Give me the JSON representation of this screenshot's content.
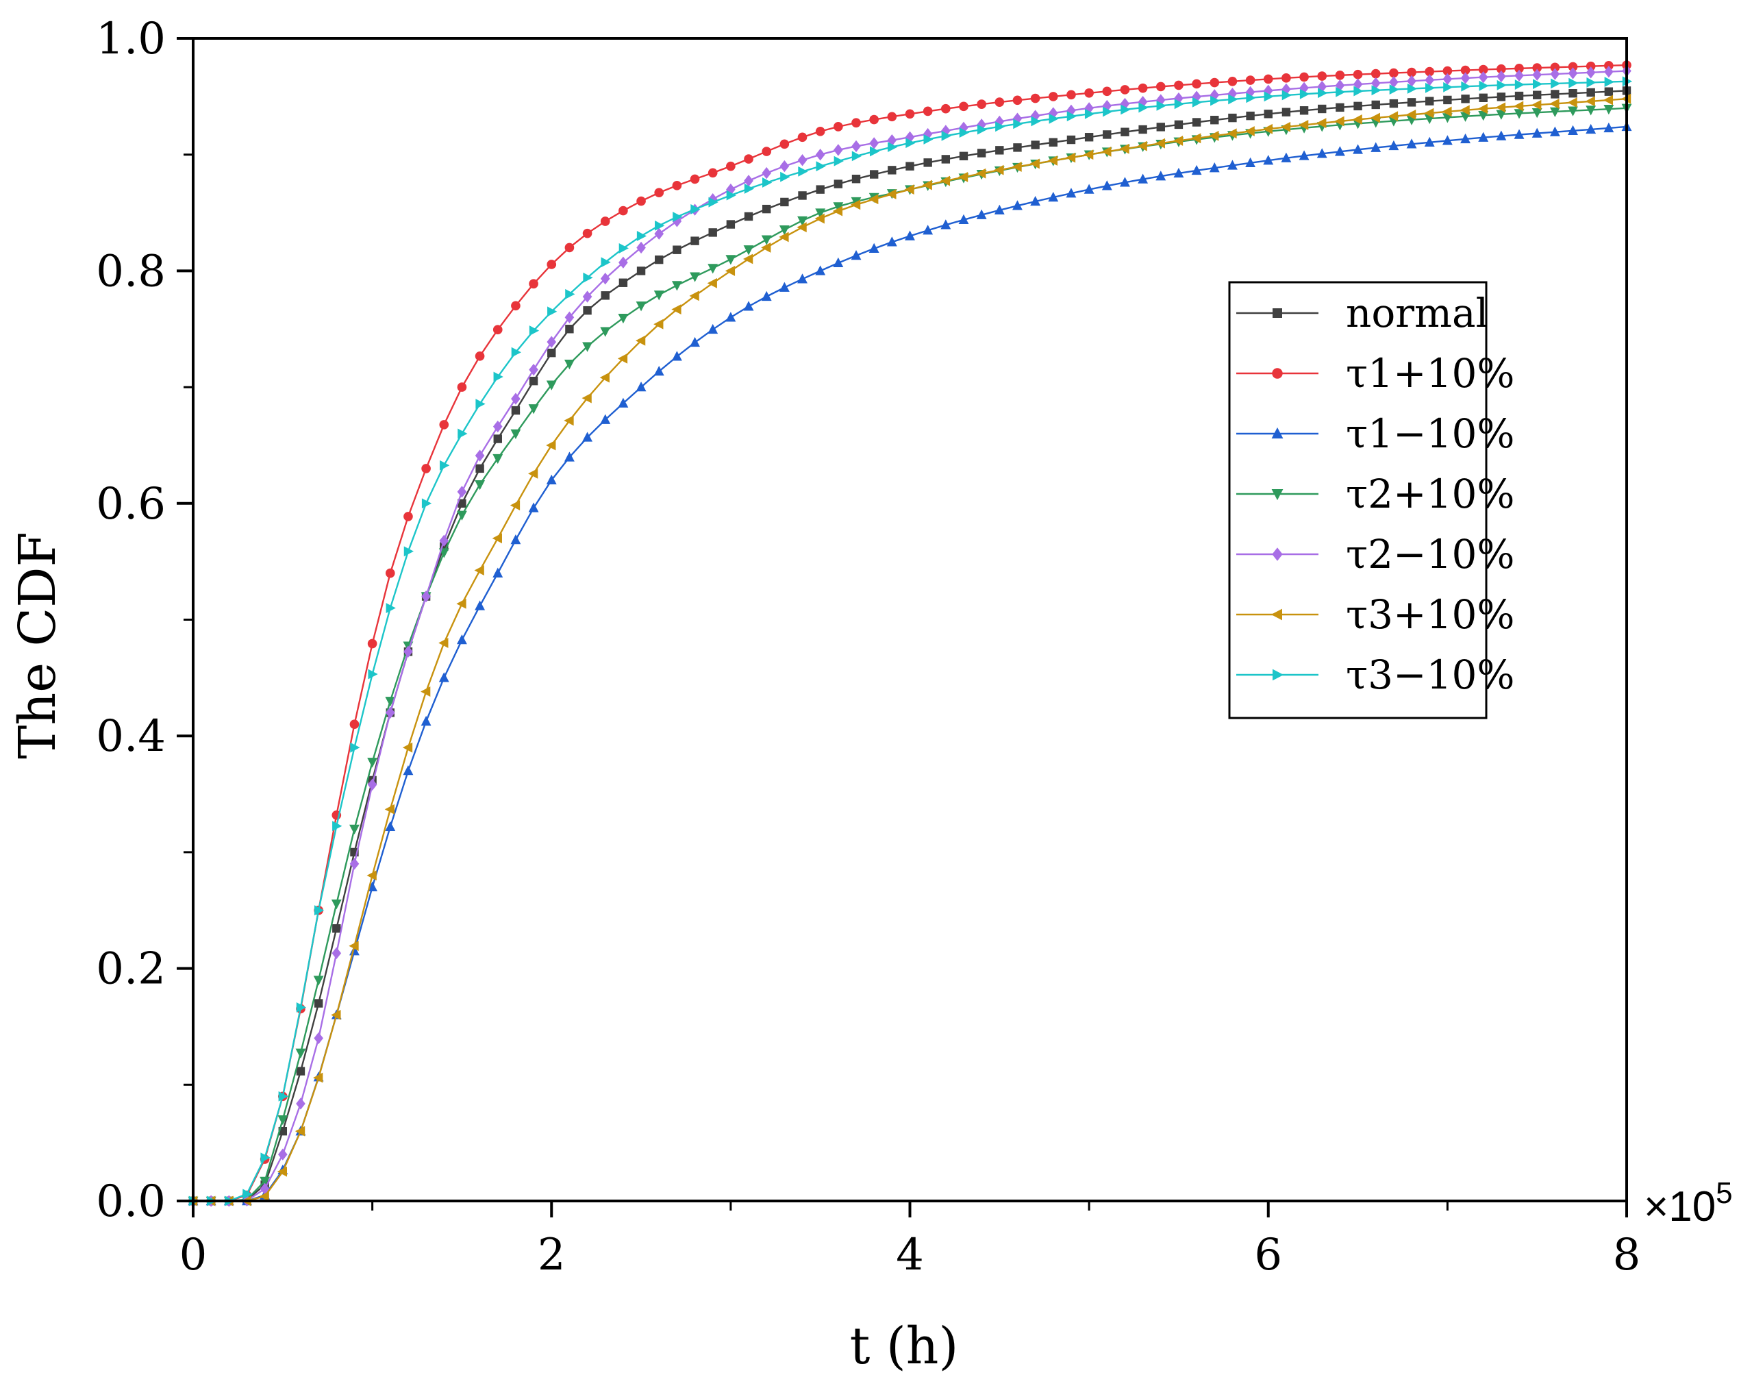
{
  "chart_data": {
    "type": "line",
    "title": "",
    "xlabel": "t (h)",
    "ylabel": "The CDF",
    "x_multiplier": "×10",
    "x_multiplier_exp": "5",
    "xlim": [
      0,
      8
    ],
    "ylim": [
      0,
      1
    ],
    "x_ticks": [
      0,
      2,
      4,
      6,
      8
    ],
    "x_tick_labels": [
      "0",
      "2",
      "4",
      "6",
      "8"
    ],
    "y_ticks": [
      0,
      0.2,
      0.4,
      0.6,
      0.8,
      1.0
    ],
    "y_tick_labels": [
      "0.0",
      "0.2",
      "0.4",
      "0.6",
      "0.8",
      "1.0"
    ],
    "grid": false,
    "legend_position": "right-middle",
    "series": [
      {
        "name": "normal",
        "color": "#404040",
        "marker": "square",
        "points": [
          [
            0,
            0
          ],
          [
            0.2,
            0
          ],
          [
            0.35,
            0.003
          ],
          [
            0.5,
            0.06
          ],
          [
            0.7,
            0.17
          ],
          [
            0.9,
            0.3
          ],
          [
            1.1,
            0.42
          ],
          [
            1.3,
            0.52
          ],
          [
            1.5,
            0.6
          ],
          [
            1.8,
            0.68
          ],
          [
            2.1,
            0.75
          ],
          [
            2.5,
            0.8
          ],
          [
            3.0,
            0.84
          ],
          [
            3.5,
            0.87
          ],
          [
            4.0,
            0.89
          ],
          [
            5.0,
            0.915
          ],
          [
            6.0,
            0.935
          ],
          [
            7.0,
            0.947
          ],
          [
            8.0,
            0.955
          ]
        ]
      },
      {
        "name": "τ1+10%",
        "color": "#e8343a",
        "marker": "circle",
        "points": [
          [
            0,
            0
          ],
          [
            0.2,
            0
          ],
          [
            0.3,
            0.005
          ],
          [
            0.5,
            0.09
          ],
          [
            0.7,
            0.25
          ],
          [
            0.9,
            0.41
          ],
          [
            1.1,
            0.54
          ],
          [
            1.3,
            0.63
          ],
          [
            1.5,
            0.7
          ],
          [
            1.8,
            0.77
          ],
          [
            2.1,
            0.82
          ],
          [
            2.5,
            0.86
          ],
          [
            3.0,
            0.89
          ],
          [
            3.5,
            0.92
          ],
          [
            4.0,
            0.935
          ],
          [
            5.0,
            0.953
          ],
          [
            6.0,
            0.965
          ],
          [
            7.0,
            0.972
          ],
          [
            8.0,
            0.977
          ]
        ]
      },
      {
        "name": "τ1−10%",
        "color": "#1f5fd1",
        "marker": "triangle-up",
        "points": [
          [
            0,
            0
          ],
          [
            0.3,
            0
          ],
          [
            0.4,
            0.005
          ],
          [
            0.6,
            0.06
          ],
          [
            0.8,
            0.16
          ],
          [
            1.0,
            0.27
          ],
          [
            1.2,
            0.37
          ],
          [
            1.4,
            0.45
          ],
          [
            1.7,
            0.54
          ],
          [
            2.0,
            0.62
          ],
          [
            2.5,
            0.7
          ],
          [
            3.0,
            0.76
          ],
          [
            3.5,
            0.8
          ],
          [
            4.0,
            0.83
          ],
          [
            5.0,
            0.87
          ],
          [
            6.0,
            0.895
          ],
          [
            7.0,
            0.912
          ],
          [
            8.0,
            0.924
          ]
        ]
      },
      {
        "name": "τ2+10%",
        "color": "#2e9a5c",
        "marker": "triangle-down",
        "points": [
          [
            0,
            0
          ],
          [
            0.2,
            0
          ],
          [
            0.35,
            0.004
          ],
          [
            0.5,
            0.07
          ],
          [
            0.7,
            0.19
          ],
          [
            0.9,
            0.32
          ],
          [
            1.1,
            0.43
          ],
          [
            1.3,
            0.52
          ],
          [
            1.5,
            0.59
          ],
          [
            1.8,
            0.66
          ],
          [
            2.1,
            0.72
          ],
          [
            2.5,
            0.77
          ],
          [
            3.0,
            0.81
          ],
          [
            3.5,
            0.85
          ],
          [
            4.0,
            0.87
          ],
          [
            5.0,
            0.9
          ],
          [
            6.0,
            0.92
          ],
          [
            7.0,
            0.932
          ],
          [
            8.0,
            0.94
          ]
        ]
      },
      {
        "name": "τ2−10%",
        "color": "#a86ee6",
        "marker": "diamond",
        "points": [
          [
            0,
            0
          ],
          [
            0.25,
            0
          ],
          [
            0.35,
            0.003
          ],
          [
            0.5,
            0.04
          ],
          [
            0.7,
            0.14
          ],
          [
            0.9,
            0.29
          ],
          [
            1.1,
            0.42
          ],
          [
            1.3,
            0.52
          ],
          [
            1.5,
            0.61
          ],
          [
            1.8,
            0.69
          ],
          [
            2.1,
            0.76
          ],
          [
            2.5,
            0.82
          ],
          [
            3.0,
            0.87
          ],
          [
            3.5,
            0.9
          ],
          [
            4.0,
            0.915
          ],
          [
            5.0,
            0.94
          ],
          [
            6.0,
            0.955
          ],
          [
            7.0,
            0.965
          ],
          [
            8.0,
            0.972
          ]
        ]
      },
      {
        "name": "τ3+10%",
        "color": "#c8920e",
        "marker": "triangle-left",
        "points": [
          [
            0,
            0
          ],
          [
            0.3,
            0
          ],
          [
            0.4,
            0.004
          ],
          [
            0.6,
            0.06
          ],
          [
            0.8,
            0.16
          ],
          [
            1.0,
            0.28
          ],
          [
            1.2,
            0.39
          ],
          [
            1.4,
            0.48
          ],
          [
            1.7,
            0.57
          ],
          [
            2.0,
            0.65
          ],
          [
            2.5,
            0.74
          ],
          [
            3.0,
            0.8
          ],
          [
            3.5,
            0.845
          ],
          [
            4.0,
            0.87
          ],
          [
            5.0,
            0.9
          ],
          [
            6.0,
            0.922
          ],
          [
            7.0,
            0.937
          ],
          [
            8.0,
            0.948
          ]
        ]
      },
      {
        "name": "τ3−10%",
        "color": "#1cc5c9",
        "marker": "triangle-right",
        "points": [
          [
            0,
            0
          ],
          [
            0.2,
            0
          ],
          [
            0.3,
            0.006
          ],
          [
            0.5,
            0.09
          ],
          [
            0.7,
            0.25
          ],
          [
            0.9,
            0.39
          ],
          [
            1.1,
            0.51
          ],
          [
            1.3,
            0.6
          ],
          [
            1.5,
            0.66
          ],
          [
            1.8,
            0.73
          ],
          [
            2.1,
            0.78
          ],
          [
            2.5,
            0.83
          ],
          [
            3.0,
            0.865
          ],
          [
            3.5,
            0.89
          ],
          [
            4.0,
            0.91
          ],
          [
            5.0,
            0.935
          ],
          [
            6.0,
            0.95
          ],
          [
            7.0,
            0.958
          ],
          [
            8.0,
            0.963
          ]
        ]
      }
    ]
  }
}
